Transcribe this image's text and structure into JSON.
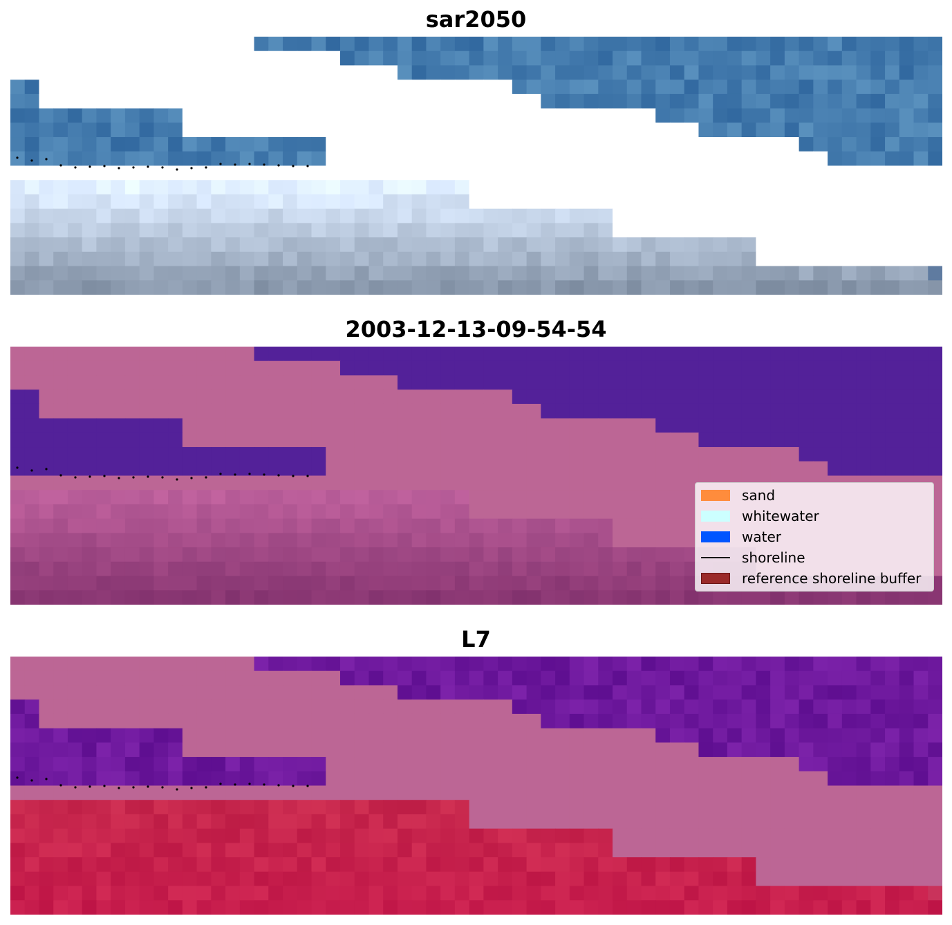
{
  "panels": [
    {
      "title": "sar2050",
      "style": "rgb"
    },
    {
      "title": "2003-12-13-09-54-54",
      "style": "classified"
    },
    {
      "title": "L7",
      "style": "index"
    }
  ],
  "legend": {
    "items": [
      {
        "label": "sand",
        "color": "#ff8c3c",
        "kind": "patch"
      },
      {
        "label": "whitewater",
        "color": "#ccffff",
        "kind": "patch"
      },
      {
        "label": "water",
        "color": "#0055ff",
        "kind": "patch"
      },
      {
        "label": "shoreline",
        "color": "#000000",
        "kind": "line"
      },
      {
        "label": "reference shoreline buffer",
        "color": "#9b2a2a",
        "kind": "patch"
      }
    ]
  },
  "colors": {
    "nodata": "#ffffff",
    "mask_pink": "#bc6695",
    "water_purple": "#532199",
    "sar_water": "#3270a8",
    "sar_beach": "#b3c3dd",
    "index_water": "#6a1a96",
    "index_land": "#c01e4e"
  }
}
